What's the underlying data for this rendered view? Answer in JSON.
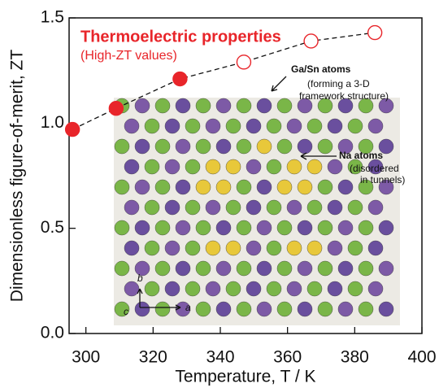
{
  "chart_data": {
    "type": "line",
    "title": "Thermoelectric properties",
    "subtitle": "(High-ZT values)",
    "x_label": "Temperature, T / K",
    "y_label": "Dimensionless figure-of-merit, ZT",
    "x": [
      296,
      309,
      328,
      347,
      367,
      386
    ],
    "series": [
      {
        "color": "#e8252a",
        "values": [
          0.97,
          1.07,
          1.21,
          1.29,
          1.39,
          1.43
        ],
        "markers": [
          "filled",
          "filled",
          "filled",
          "open",
          "open",
          "open"
        ]
      }
    ],
    "xlim": [
      295,
      400
    ],
    "xticks": [
      300,
      320,
      340,
      360,
      380,
      400
    ],
    "ylim": [
      0,
      1.5
    ],
    "yticks": [
      {
        "value": 0,
        "label": "0.0"
      },
      {
        "value": 0.5,
        "label": "0.5"
      },
      {
        "value": 1,
        "label": "1.0"
      },
      {
        "value": 1.5,
        "label": "1.5"
      }
    ],
    "annotations": [
      "Ga/Sn atoms",
      "(forming a 3-D",
      "framework structure)",
      "Na atoms",
      "(disordered",
      "in tunnels)",
      "b",
      "c",
      "a"
    ]
  }
}
